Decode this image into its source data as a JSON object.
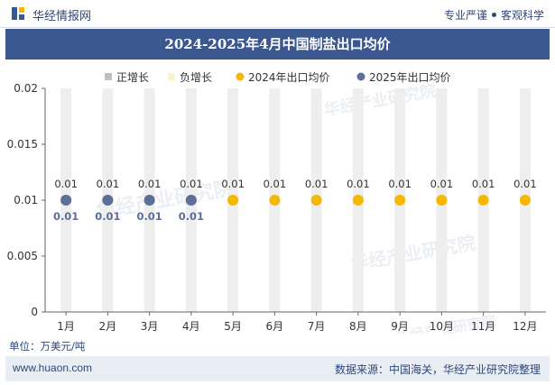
{
  "header": {
    "site_name": "华经情报网",
    "tagline_left": "专业严谨",
    "tagline_right": "客观科学"
  },
  "footer": {
    "website": "www.huaon.com",
    "source": "数据来源：中国海关，华经产业研究院整理"
  },
  "unit": "单位：万美元/吨",
  "watermark": {
    "text": "华经产业研究院",
    "url": "www.huaon.com"
  },
  "colors": {
    "title_band": "#3b5790",
    "positive": "#bfbfbf",
    "negative": "#fdf1c8",
    "series_2024": "#f5b800",
    "series_2025": "#5b6f9a",
    "bar_bg": "#eeeeee"
  },
  "chart_data": {
    "type": "scatter",
    "title": "2024-2025年4月中国制盐出口均价",
    "categories": [
      "1月",
      "2月",
      "3月",
      "4月",
      "5月",
      "6月",
      "7月",
      "8月",
      "9月",
      "10月",
      "11月",
      "12月"
    ],
    "legend": [
      "正增长",
      "负增长",
      "2024年出口均价",
      "2025年出口均价"
    ],
    "series": [
      {
        "name": "2024年出口均价",
        "values": [
          0.01,
          0.01,
          0.01,
          0.01,
          0.01,
          0.01,
          0.01,
          0.01,
          0.01,
          0.01,
          0.01,
          0.01
        ],
        "labels": [
          "0.01",
          "0.01",
          "0.01",
          "0.01",
          "0.01",
          "0.01",
          "0.01",
          "0.01",
          "0.01",
          "0.01",
          "0.01",
          "0.01"
        ]
      },
      {
        "name": "2025年出口均价",
        "values": [
          0.01,
          0.01,
          0.01,
          0.01
        ],
        "labels": [
          "0.01",
          "0.01",
          "0.01",
          "0.01"
        ]
      }
    ],
    "y_ticks": [
      "0",
      "0.005",
      "0.01",
      "0.015",
      "0.02"
    ],
    "ylim": [
      0,
      0.02
    ],
    "legend_position": "top"
  }
}
